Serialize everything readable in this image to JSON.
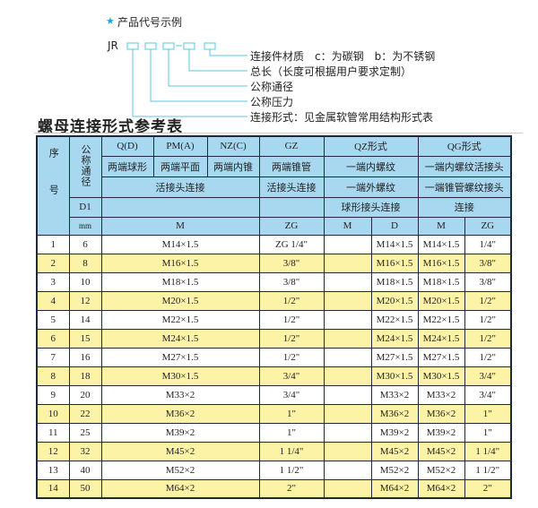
{
  "example": {
    "title": "产品代号示例",
    "prefix": "JR",
    "labels": [
      "连接件材质　c：为碳钢　b：为不锈钢",
      "总长（长度可根据用户要求定制）",
      "公称通径",
      "公称压力",
      "连接形式：见金属软管常用结构形式表"
    ]
  },
  "colors": {
    "accent": "#2a9fd6",
    "header": "#a8d8f0",
    "stripe": "#fdf3a6"
  },
  "table_title": "螺母连接形式参考表",
  "header": {
    "seq": "序号",
    "nominal": "公称通径",
    "d1": "D1",
    "mm": "mm",
    "q": "Q(D)",
    "pm": "PM(A)",
    "nz": "NZ(C)",
    "gz": "GZ",
    "qz": "QZ形式",
    "qg": "QG形式",
    "q2": "两端球形",
    "pm2": "两端平面",
    "nz2": "两端内锥",
    "gz2": "两端锥管",
    "qz2": "一端内螺纹",
    "qg2": "一端内螺纹活接头",
    "live": "活接头连接",
    "gz3": "活接头连接",
    "qz3": "一端外螺纹",
    "qg3": "一端锥管螺纹接头",
    "qz4": "球形接头连接",
    "qg4": "连接",
    "m": "M",
    "zg": "ZG",
    "qz_m": "M",
    "qz_d": "D",
    "qg_m": "M",
    "qg_zg": "ZG"
  },
  "rows": [
    {
      "no": "1",
      "dn": "6",
      "m": "M14×1.5",
      "zg": "ZG 1/4\"",
      "qzd": "M14×1.5",
      "qgm": "M14×1.5",
      "qgzg": "1/4\""
    },
    {
      "no": "2",
      "dn": "8",
      "m": "M16×1.5",
      "zg": "3/8\"",
      "qzd": "M16×1.5",
      "qgm": "M16×1.5",
      "qgzg": "3/8\""
    },
    {
      "no": "3",
      "dn": "10",
      "m": "M18×1.5",
      "zg": "3/8\"",
      "qzd": "M18×1.5",
      "qgm": "M18×1.5",
      "qgzg": "3/8\""
    },
    {
      "no": "4",
      "dn": "12",
      "m": "M20×1.5",
      "zg": "1/2\"",
      "qzd": "M20×1.5",
      "qgm": "M20×1.5",
      "qgzg": "1/2\""
    },
    {
      "no": "5",
      "dn": "14",
      "m": "M22×1.5",
      "zg": "1/2\"",
      "qzd": "M22×1.5",
      "qgm": "M22×1.5",
      "qgzg": "1/2\""
    },
    {
      "no": "6",
      "dn": "15",
      "m": "M24×1.5",
      "zg": "1/2\"",
      "qzd": "M24×1.5",
      "qgm": "M24×1.5",
      "qgzg": "1/2\""
    },
    {
      "no": "7",
      "dn": "16",
      "m": "M27×1.5",
      "zg": "1/2\"",
      "qzd": "M27×1.5",
      "qgm": "M27×1.5",
      "qgzg": "1/2\""
    },
    {
      "no": "8",
      "dn": "18",
      "m": "M30×1.5",
      "zg": "3/4\"",
      "qzd": "M30×1.5",
      "qgm": "M30×1.5",
      "qgzg": "3/4\""
    },
    {
      "no": "9",
      "dn": "20",
      "m": "M33×2",
      "zg": "3/4\"",
      "qzd": "M33×2",
      "qgm": "M33×2",
      "qgzg": "3/4\""
    },
    {
      "no": "10",
      "dn": "22",
      "m": "M36×2",
      "zg": "1\"",
      "qzd": "M36×2",
      "qgm": "M36×2",
      "qgzg": "1\""
    },
    {
      "no": "11",
      "dn": "25",
      "m": "M39×2",
      "zg": "1\"",
      "qzd": "M39×2",
      "qgm": "M39×2",
      "qgzg": "1\""
    },
    {
      "no": "12",
      "dn": "32",
      "m": "M45×2",
      "zg": "1 1/4\"",
      "qzd": "M45×2",
      "qgm": "M45×2",
      "qgzg": "1 1/4\""
    },
    {
      "no": "13",
      "dn": "40",
      "m": "M52×2",
      "zg": "1 1/2\"",
      "qzd": "M52×2",
      "qgm": "M52×2",
      "qgzg": "1 1/2\""
    },
    {
      "no": "14",
      "dn": "50",
      "m": "M64×2",
      "zg": "2\"",
      "qzd": "M64×2",
      "qgm": "M64×2",
      "qgzg": "2\""
    }
  ]
}
